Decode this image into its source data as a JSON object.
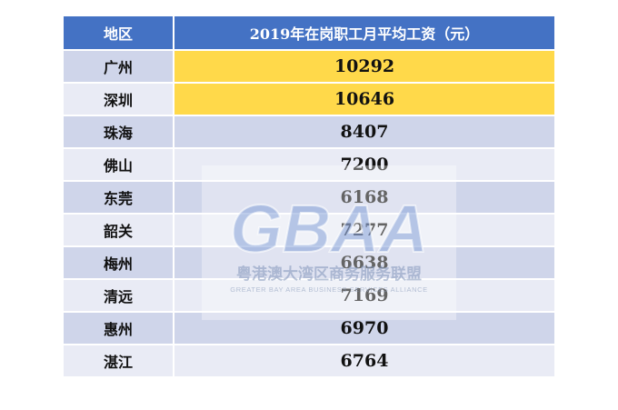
{
  "table": {
    "headers": {
      "region": "地区",
      "wage": "2019年在岗职工月平均工资（元）"
    },
    "rows": [
      {
        "region": "广州",
        "wage": "10292",
        "highlight": true
      },
      {
        "region": "深圳",
        "wage": "10646",
        "highlight": true
      },
      {
        "region": "珠海",
        "wage": "8407",
        "highlight": false
      },
      {
        "region": "佛山",
        "wage": "7200",
        "highlight": false
      },
      {
        "region": "东莞",
        "wage": "6168",
        "highlight": false
      },
      {
        "region": "韶关",
        "wage": "7277",
        "highlight": false
      },
      {
        "region": "梅州",
        "wage": "6638",
        "highlight": false
      },
      {
        "region": "清远",
        "wage": "7169",
        "highlight": false
      },
      {
        "region": "惠州",
        "wage": "6970",
        "highlight": false
      },
      {
        "region": "湛江",
        "wage": "6764",
        "highlight": false
      }
    ]
  },
  "watermark": {
    "logo": "GBAA",
    "name_cn": "粤港澳大湾区商务服务联盟",
    "name_en": "GREATER BAY AREA BUSINESS SERVICES ALLIANCE"
  },
  "colors": {
    "header_bg": "#4472c4",
    "row_dark": "#cfd5ea",
    "row_light": "#e9ebf5",
    "highlight": "#ffd94a"
  }
}
